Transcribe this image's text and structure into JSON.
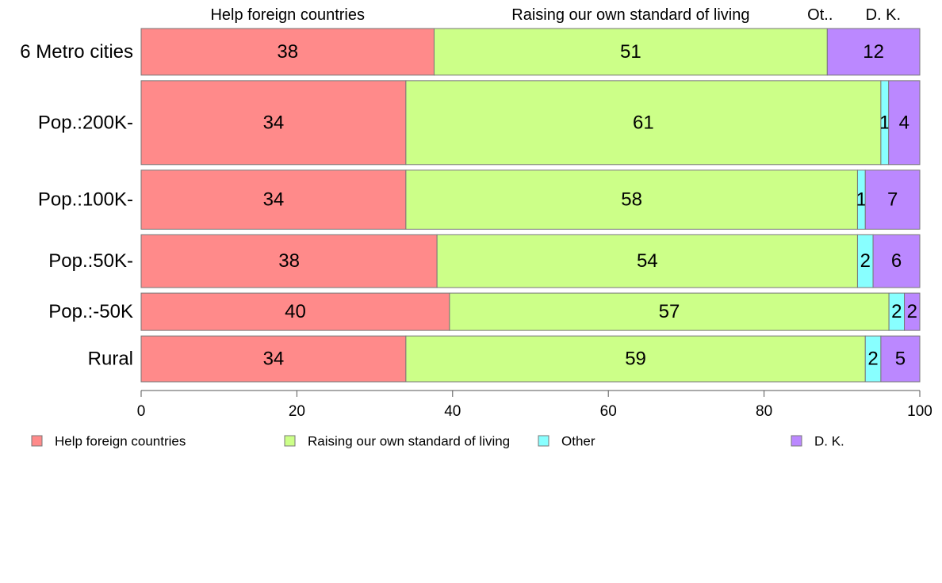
{
  "chart_data": {
    "type": "bar",
    "orientation": "horizontal",
    "stacked": true,
    "categories": [
      "6 Metro cities",
      "Pop.:200K-",
      "Pop.:100K-",
      "Pop.:50K-",
      "Pop.:-50K",
      "Rural"
    ],
    "series": [
      {
        "name": "Help foreign countries",
        "values": [
          38,
          34,
          34,
          38,
          40,
          34
        ]
      },
      {
        "name": "Raising our own standard of living",
        "values": [
          51,
          61,
          58,
          54,
          57,
          59
        ]
      },
      {
        "name": "Other",
        "values": [
          0,
          1,
          1,
          2,
          2,
          2
        ]
      },
      {
        "name": "D. K.",
        "values": [
          12,
          4,
          7,
          6,
          2,
          5
        ]
      }
    ],
    "top_labels": [
      "Help foreign countries",
      "Raising our own standard of living",
      "Ot..",
      "D. K."
    ],
    "xlim": [
      0,
      100
    ],
    "xticks": [
      0,
      20,
      40,
      60,
      80,
      100
    ],
    "grid": false,
    "legend_position": "bottom",
    "colors": [
      "#ff8a8a",
      "#ccff88",
      "#88ffff",
      "#bb88ff"
    ],
    "bar_thickness_relative": [
      6.0,
      10.8,
      7.6,
      6.8,
      4.8,
      5.9
    ]
  }
}
